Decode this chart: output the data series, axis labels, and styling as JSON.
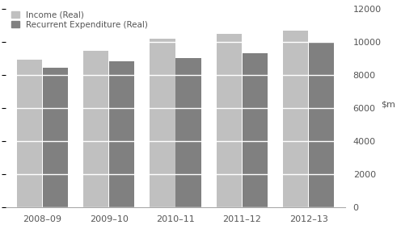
{
  "categories": [
    "2008–09",
    "2009–10",
    "2010–11",
    "2011–12",
    "2012–13"
  ],
  "income": [
    8950,
    9450,
    10200,
    10500,
    10700
  ],
  "expenditure": [
    8450,
    8850,
    9050,
    9300,
    9950
  ],
  "income_color": "#c0c0c0",
  "expenditure_color": "#808080",
  "ylim": [
    0,
    12000
  ],
  "yticks": [
    0,
    2000,
    4000,
    6000,
    8000,
    10000,
    12000
  ],
  "legend_income": "Income (Real)",
  "legend_expenditure": "Recurrent Expenditure (Real)",
  "bar_width": 0.38,
  "grid_color": "#ffffff",
  "bg_color": "#ffffff",
  "spine_color": "#aaaaaa",
  "tick_color": "#555555",
  "label_fontsize": 8
}
